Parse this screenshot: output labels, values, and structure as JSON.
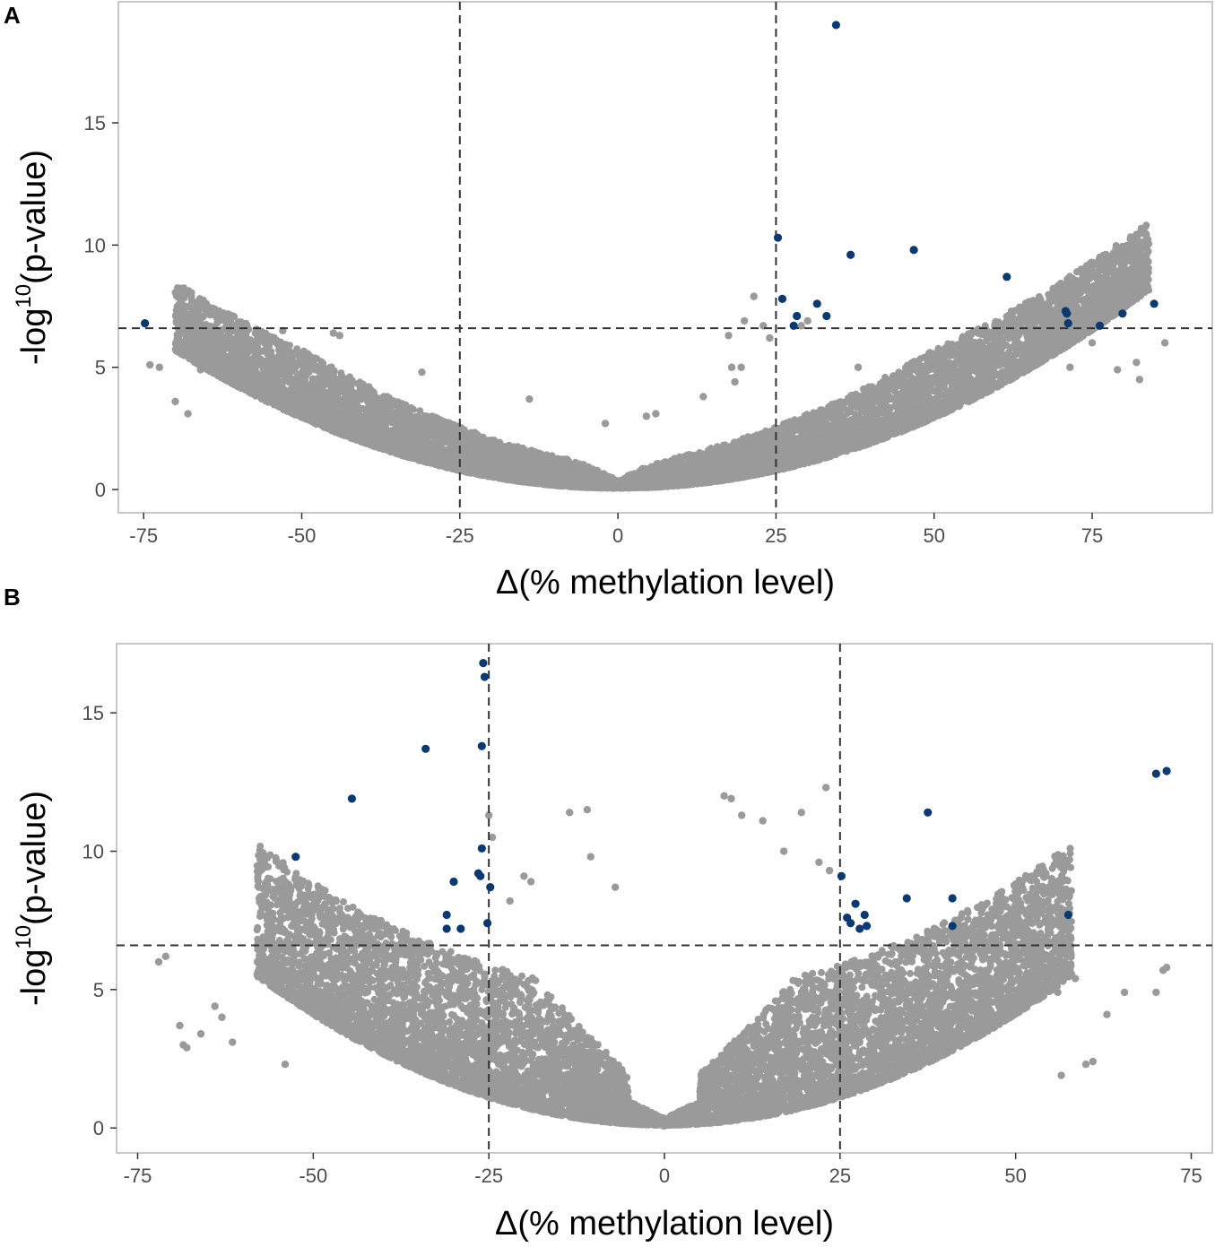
{
  "chart_data": [
    {
      "type": "scatter",
      "panel_label": "A",
      "title": "",
      "xlabel": "Δ(% methylation level)",
      "ylabel_prefix": "-log",
      "ylabel_sup": "10",
      "ylabel_suffix": "(p-value)",
      "xlim": [
        -79,
        94
      ],
      "ylim": [
        -0.95,
        19.95
      ],
      "x_ticks": [
        -75,
        -50,
        -25,
        0,
        25,
        50,
        75
      ],
      "y_ticks": [
        0,
        5,
        10,
        15
      ],
      "x_tick_labels": [
        "-75",
        "-50",
        "-25",
        "0",
        "25",
        "50",
        "75"
      ],
      "y_tick_labels": [
        "0",
        "5",
        "10",
        "15"
      ],
      "thresholds": {
        "x": [
          -25,
          25
        ],
        "y": 6.6
      },
      "colors": {
        "significant": "#0b3a73",
        "background": "#9a9a9a",
        "threshold_line": "#333333",
        "frame": "#c8c8c8"
      },
      "significant_points": [
        {
          "x": -74.8,
          "y": 6.8
        },
        {
          "x": 34.5,
          "y": 19.0
        },
        {
          "x": 25.3,
          "y": 10.3
        },
        {
          "x": 26.0,
          "y": 7.8
        },
        {
          "x": 27.8,
          "y": 6.7
        },
        {
          "x": 28.3,
          "y": 7.1
        },
        {
          "x": 31.5,
          "y": 7.6
        },
        {
          "x": 33.0,
          "y": 7.1
        },
        {
          "x": 36.8,
          "y": 9.6
        },
        {
          "x": 46.8,
          "y": 9.8
        },
        {
          "x": 61.5,
          "y": 8.7
        },
        {
          "x": 70.8,
          "y": 7.3
        },
        {
          "x": 71.0,
          "y": 7.2
        },
        {
          "x": 71.2,
          "y": 6.8
        },
        {
          "x": 76.2,
          "y": 6.7
        },
        {
          "x": 79.8,
          "y": 7.2
        },
        {
          "x": 84.8,
          "y": 7.6
        }
      ],
      "background_points": [
        {
          "x": -74.0,
          "y": 5.1
        },
        {
          "x": -72.5,
          "y": 5.0
        },
        {
          "x": -70.0,
          "y": 3.6
        },
        {
          "x": -68.0,
          "y": 3.1
        },
        {
          "x": -66.0,
          "y": 4.9
        },
        {
          "x": -62.0,
          "y": 6.2
        },
        {
          "x": -60.0,
          "y": 6.4
        },
        {
          "x": -57.0,
          "y": 6.5
        },
        {
          "x": -53.0,
          "y": 6.5
        },
        {
          "x": -45.0,
          "y": 6.4
        },
        {
          "x": -44.0,
          "y": 6.3
        },
        {
          "x": -31.0,
          "y": 4.8
        },
        {
          "x": -14.0,
          "y": 3.7
        },
        {
          "x": -2.0,
          "y": 2.7
        },
        {
          "x": 4.5,
          "y": 3.0
        },
        {
          "x": 6.0,
          "y": 3.1
        },
        {
          "x": 13.5,
          "y": 3.8
        },
        {
          "x": 17.5,
          "y": 6.3
        },
        {
          "x": 18.0,
          "y": 5.0
        },
        {
          "x": 18.5,
          "y": 4.4
        },
        {
          "x": 19.5,
          "y": 5.0
        },
        {
          "x": 20.0,
          "y": 6.9
        },
        {
          "x": 21.5,
          "y": 7.9
        },
        {
          "x": 23.0,
          "y": 6.7
        },
        {
          "x": 24.0,
          "y": 6.2
        },
        {
          "x": 29.0,
          "y": 6.7
        },
        {
          "x": 30.0,
          "y": 6.9
        },
        {
          "x": 38.0,
          "y": 5.0
        },
        {
          "x": 56.0,
          "y": 6.4
        },
        {
          "x": 60.0,
          "y": 6.5
        },
        {
          "x": 64.0,
          "y": 6.5
        },
        {
          "x": 71.5,
          "y": 5.0
        },
        {
          "x": 75.0,
          "y": 6.0
        },
        {
          "x": 79.0,
          "y": 4.9
        },
        {
          "x": 82.0,
          "y": 5.2
        },
        {
          "x": 82.5,
          "y": 4.5
        },
        {
          "x": 86.5,
          "y": 6.0
        }
      ],
      "background_cloud": {
        "n": 9000,
        "seed": 11,
        "x_range": [
          -70,
          84
        ],
        "y_floor": 0.1,
        "curve_coeff": 0.00115,
        "curve_offset": 0.05,
        "spread_min": 0.8,
        "spread_coeff": 0.04,
        "spread_max": 2.8,
        "center_boost": 2.0,
        "center_width": 9
      }
    },
    {
      "type": "scatter",
      "panel_label": "B",
      "title": "",
      "xlabel": "Δ(% methylation level)",
      "ylabel_prefix": "-log",
      "ylabel_sup": "10",
      "ylabel_suffix": "(p-value)",
      "xlim": [
        -78,
        78
      ],
      "ylim": [
        -0.9,
        17.5
      ],
      "x_ticks": [
        -75,
        -50,
        -25,
        0,
        25,
        50,
        75
      ],
      "y_ticks": [
        0,
        5,
        10,
        15
      ],
      "x_tick_labels": [
        "-75",
        "-50",
        "-25",
        "0",
        "25",
        "50",
        "75"
      ],
      "y_tick_labels": [
        "0",
        "5",
        "10",
        "15"
      ],
      "thresholds": {
        "x": [
          -25,
          25
        ],
        "y": 6.6
      },
      "colors": {
        "significant": "#0b3a73",
        "background": "#9a9a9a",
        "threshold_line": "#333333",
        "frame": "#c8c8c8"
      },
      "significant_points": [
        {
          "x": -52.5,
          "y": 9.8
        },
        {
          "x": -44.5,
          "y": 11.9
        },
        {
          "x": -34.0,
          "y": 13.7
        },
        {
          "x": -31.0,
          "y": 7.7
        },
        {
          "x": -31.0,
          "y": 7.2
        },
        {
          "x": -30.0,
          "y": 8.9
        },
        {
          "x": -29.0,
          "y": 7.2
        },
        {
          "x": -26.5,
          "y": 9.2
        },
        {
          "x": -26.2,
          "y": 9.1
        },
        {
          "x": -26.0,
          "y": 13.8
        },
        {
          "x": -26.0,
          "y": 10.1
        },
        {
          "x": -25.8,
          "y": 16.8
        },
        {
          "x": -25.6,
          "y": 16.3
        },
        {
          "x": -25.2,
          "y": 7.4
        },
        {
          "x": -24.8,
          "y": 8.7
        },
        {
          "x": 25.2,
          "y": 9.1
        },
        {
          "x": 26.0,
          "y": 7.6
        },
        {
          "x": 26.5,
          "y": 7.4
        },
        {
          "x": 27.2,
          "y": 8.1
        },
        {
          "x": 27.8,
          "y": 7.2
        },
        {
          "x": 28.5,
          "y": 7.7
        },
        {
          "x": 28.8,
          "y": 7.3
        },
        {
          "x": 34.5,
          "y": 8.3
        },
        {
          "x": 37.5,
          "y": 11.4
        },
        {
          "x": 41.0,
          "y": 8.3
        },
        {
          "x": 41.0,
          "y": 7.3
        },
        {
          "x": 57.5,
          "y": 7.7
        },
        {
          "x": 70.0,
          "y": 12.8
        },
        {
          "x": 71.5,
          "y": 12.9
        }
      ],
      "background_points": [
        {
          "x": -72.0,
          "y": 6.0
        },
        {
          "x": -71.0,
          "y": 6.2
        },
        {
          "x": -69.0,
          "y": 3.7
        },
        {
          "x": -68.5,
          "y": 3.0
        },
        {
          "x": -68.0,
          "y": 2.9
        },
        {
          "x": -66.0,
          "y": 3.4
        },
        {
          "x": -64.0,
          "y": 4.4
        },
        {
          "x": -63.0,
          "y": 4.0
        },
        {
          "x": -61.5,
          "y": 3.1
        },
        {
          "x": -56.0,
          "y": 5.3
        },
        {
          "x": -55.0,
          "y": 5.0
        },
        {
          "x": -54.0,
          "y": 2.3
        },
        {
          "x": -44.0,
          "y": 6.2
        },
        {
          "x": -40.0,
          "y": 4.5
        },
        {
          "x": -25.0,
          "y": 11.3
        },
        {
          "x": -24.5,
          "y": 10.5
        },
        {
          "x": -22.0,
          "y": 8.2
        },
        {
          "x": -20.0,
          "y": 9.1
        },
        {
          "x": -19.0,
          "y": 8.9
        },
        {
          "x": -13.5,
          "y": 11.4
        },
        {
          "x": -11.0,
          "y": 11.5
        },
        {
          "x": -10.5,
          "y": 9.8
        },
        {
          "x": -7.0,
          "y": 8.7
        },
        {
          "x": 8.5,
          "y": 12.0
        },
        {
          "x": 9.5,
          "y": 11.9
        },
        {
          "x": 11.0,
          "y": 11.3
        },
        {
          "x": 14.0,
          "y": 11.1
        },
        {
          "x": 17.0,
          "y": 10.0
        },
        {
          "x": 19.5,
          "y": 11.4
        },
        {
          "x": 23.0,
          "y": 12.3
        },
        {
          "x": 22.0,
          "y": 9.6
        },
        {
          "x": 23.5,
          "y": 9.3
        },
        {
          "x": 57.0,
          "y": 6.0
        },
        {
          "x": 57.5,
          "y": 5.5
        },
        {
          "x": 56.0,
          "y": 4.9
        },
        {
          "x": 58.5,
          "y": 5.4
        },
        {
          "x": 60.0,
          "y": 2.3
        },
        {
          "x": 61.0,
          "y": 2.4
        },
        {
          "x": 63.0,
          "y": 4.1
        },
        {
          "x": 65.5,
          "y": 4.9
        },
        {
          "x": 70.0,
          "y": 4.9
        },
        {
          "x": 71.0,
          "y": 5.7
        },
        {
          "x": 71.5,
          "y": 5.8
        },
        {
          "x": 56.5,
          "y": 1.9
        }
      ],
      "background_cloud": {
        "n": 9000,
        "seed": 29,
        "x_range": [
          -58,
          58
        ],
        "y_floor": 0.05,
        "curve_coeff": 0.0016,
        "curve_offset": 0.1,
        "spread_min": 0.7,
        "spread_coeff": 0.22,
        "spread_max": 4.8,
        "center_boost": 0.0,
        "center_width": 5
      }
    }
  ]
}
